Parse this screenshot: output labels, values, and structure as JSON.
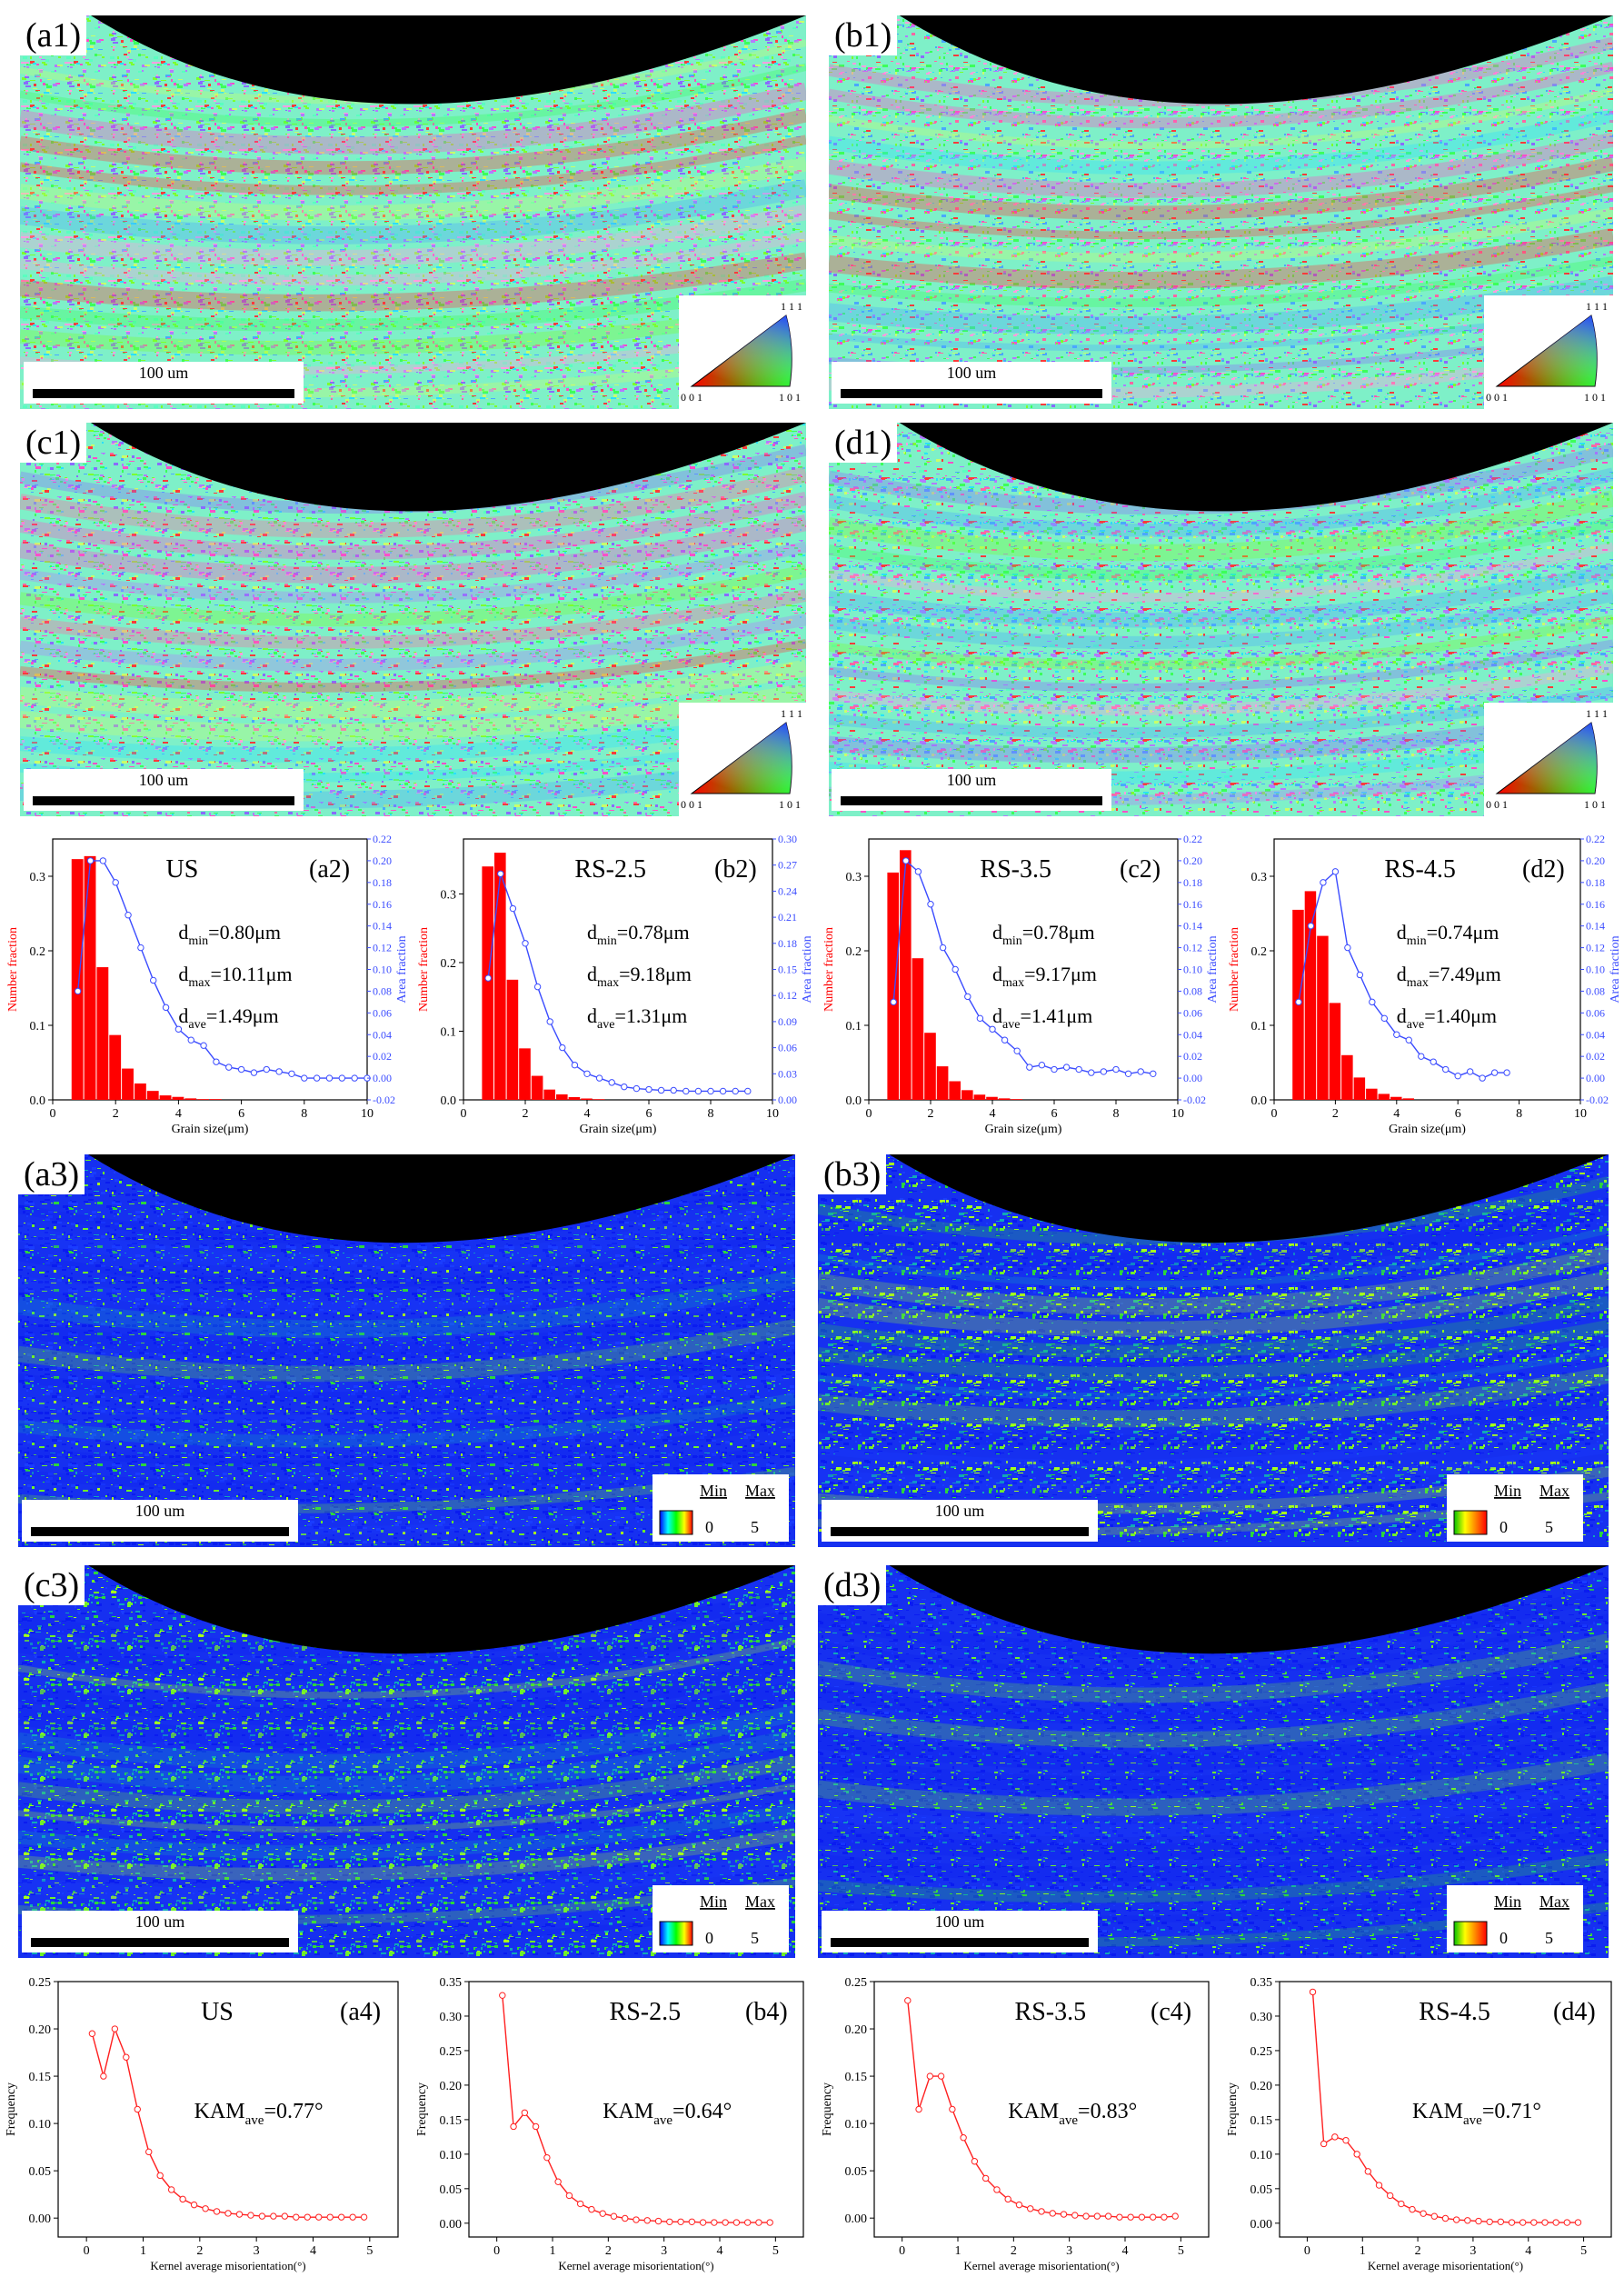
{
  "maps": {
    "ipf_panels": [
      {
        "label": "(a1)",
        "scale": "100 um"
      },
      {
        "label": "(b1)",
        "scale": "100 um"
      },
      {
        "label": "(c1)",
        "scale": "100 um"
      },
      {
        "label": "(d1)",
        "scale": "100 um"
      }
    ],
    "kam_panels": [
      {
        "label": "(a3)",
        "scale": "100 um"
      },
      {
        "label": "(b3)",
        "scale": "100 um"
      },
      {
        "label": "(c3)",
        "scale": "100 um"
      },
      {
        "label": "(d3)",
        "scale": "100 um"
      }
    ],
    "ipf_key": {
      "top": "1 1 1",
      "left": "0 0 1",
      "right": "1 0 1"
    },
    "kam_key": {
      "min_label": "Min",
      "max_label": "Max",
      "min_value": "0",
      "max_value": "5"
    }
  },
  "chart_data": [
    {
      "type": "bar",
      "panel": "(a2)",
      "group": "US",
      "xlabel": "Grain size(μm)",
      "ylabel": "Number fraction",
      "y2label": "Area fraction",
      "xlim": [
        0,
        10
      ],
      "ylim": [
        0,
        0.35
      ],
      "y2lim": [
        -0.02,
        0.22
      ],
      "xticks": [
        0,
        2,
        4,
        6,
        8,
        10
      ],
      "yticks": [
        0.0,
        0.1,
        0.2,
        0.3
      ],
      "y2ticks": [
        -0.02,
        0.0,
        0.02,
        0.04,
        0.06,
        0.08,
        0.1,
        0.12,
        0.14,
        0.16,
        0.18,
        0.2,
        0.22
      ],
      "bar_width": 0.4,
      "bars_x": [
        0.8,
        1.2,
        1.6,
        2.0,
        2.4,
        2.8,
        3.2,
        3.6,
        4.0,
        4.4,
        4.8,
        5.2
      ],
      "bars_y": [
        0.323,
        0.327,
        0.178,
        0.087,
        0.042,
        0.022,
        0.012,
        0.006,
        0.004,
        0.002,
        0.001,
        0.001
      ],
      "line_x": [
        0.8,
        1.2,
        1.6,
        2.0,
        2.4,
        2.8,
        3.2,
        3.6,
        4.0,
        4.4,
        4.8,
        5.2,
        5.6,
        6.0,
        6.4,
        6.8,
        7.2,
        7.6,
        8.0,
        8.4,
        8.8,
        9.2,
        9.6,
        10.0
      ],
      "line_y": [
        0.08,
        0.2,
        0.2,
        0.18,
        0.15,
        0.12,
        0.09,
        0.065,
        0.045,
        0.035,
        0.03,
        0.015,
        0.01,
        0.008,
        0.005,
        0.008,
        0.006,
        0.004,
        0.0,
        0.0,
        0.0,
        0.0,
        0.0,
        0.0
      ],
      "annotations": {
        "d_min": "0.80μm",
        "d_max": "10.11μm",
        "d_ave": "1.49μm"
      }
    },
    {
      "type": "bar",
      "panel": "(b2)",
      "group": "RS-2.5",
      "xlabel": "Grain size(μm)",
      "ylabel": "Number fraction",
      "y2label": "Area fraction",
      "xlim": [
        0,
        10
      ],
      "ylim": [
        0,
        0.38
      ],
      "y2lim": [
        0.0,
        0.3
      ],
      "xticks": [
        0,
        2,
        4,
        6,
        8,
        10
      ],
      "yticks": [
        0.0,
        0.1,
        0.2,
        0.3
      ],
      "y2ticks": [
        0.0,
        0.03,
        0.06,
        0.09,
        0.12,
        0.15,
        0.18,
        0.21,
        0.24,
        0.27,
        0.3
      ],
      "bar_width": 0.4,
      "bars_x": [
        0.8,
        1.2,
        1.6,
        2.0,
        2.4,
        2.8,
        3.2,
        3.6,
        4.0,
        4.4
      ],
      "bars_y": [
        0.34,
        0.36,
        0.175,
        0.075,
        0.035,
        0.015,
        0.008,
        0.004,
        0.002,
        0.001
      ],
      "line_x": [
        0.8,
        1.2,
        1.6,
        2.0,
        2.4,
        2.8,
        3.2,
        3.6,
        4.0,
        4.4,
        4.8,
        5.2,
        5.6,
        6.0,
        6.4,
        6.8,
        7.2,
        7.6,
        8.0,
        8.4,
        8.8,
        9.2
      ],
      "line_y": [
        0.14,
        0.26,
        0.22,
        0.18,
        0.13,
        0.09,
        0.06,
        0.04,
        0.03,
        0.025,
        0.02,
        0.015,
        0.013,
        0.012,
        0.011,
        0.011,
        0.01,
        0.01,
        0.01,
        0.01,
        0.01,
        0.01
      ],
      "annotations": {
        "d_min": "0.78μm",
        "d_max": "9.18μm",
        "d_ave": "1.31μm"
      }
    },
    {
      "type": "bar",
      "panel": "(c2)",
      "group": "RS-3.5",
      "xlabel": "Grain size(μm)",
      "ylabel": "Number fraction",
      "y2label": "Area fraction",
      "xlim": [
        0,
        10
      ],
      "ylim": [
        0,
        0.35
      ],
      "y2lim": [
        -0.02,
        0.22
      ],
      "xticks": [
        0,
        2,
        4,
        6,
        8,
        10
      ],
      "yticks": [
        0.0,
        0.1,
        0.2,
        0.3
      ],
      "y2ticks": [
        -0.02,
        0.0,
        0.02,
        0.04,
        0.06,
        0.08,
        0.1,
        0.12,
        0.14,
        0.16,
        0.18,
        0.2,
        0.22
      ],
      "bar_width": 0.4,
      "bars_x": [
        0.8,
        1.2,
        1.6,
        2.0,
        2.4,
        2.8,
        3.2,
        3.6,
        4.0,
        4.4,
        4.8
      ],
      "bars_y": [
        0.305,
        0.335,
        0.19,
        0.09,
        0.045,
        0.025,
        0.013,
        0.007,
        0.004,
        0.002,
        0.001
      ],
      "line_x": [
        0.8,
        1.2,
        1.6,
        2.0,
        2.4,
        2.8,
        3.2,
        3.6,
        4.0,
        4.4,
        4.8,
        5.2,
        5.6,
        6.0,
        6.4,
        6.8,
        7.2,
        7.6,
        8.0,
        8.4,
        8.8,
        9.2
      ],
      "line_y": [
        0.07,
        0.2,
        0.19,
        0.16,
        0.12,
        0.1,
        0.075,
        0.055,
        0.045,
        0.035,
        0.025,
        0.01,
        0.012,
        0.008,
        0.01,
        0.008,
        0.005,
        0.006,
        0.008,
        0.004,
        0.006,
        0.004
      ],
      "annotations": {
        "d_min": "0.78μm",
        "d_max": "9.17μm",
        "d_ave": "1.41μm"
      }
    },
    {
      "type": "bar",
      "panel": "(d2)",
      "group": "RS-4.5",
      "xlabel": "Grain size(μm)",
      "ylabel": "Number fraction",
      "y2label": "Area fraction",
      "xlim": [
        0,
        10
      ],
      "ylim": [
        0,
        0.35
      ],
      "y2lim": [
        -0.02,
        0.22
      ],
      "xticks": [
        0,
        2,
        4,
        6,
        8,
        10
      ],
      "yticks": [
        0.0,
        0.1,
        0.2,
        0.3
      ],
      "y2ticks": [
        -0.02,
        0.0,
        0.02,
        0.04,
        0.06,
        0.08,
        0.1,
        0.12,
        0.14,
        0.16,
        0.18,
        0.2,
        0.22
      ],
      "bar_width": 0.4,
      "bars_x": [
        0.8,
        1.2,
        1.6,
        2.0,
        2.4,
        2.8,
        3.2,
        3.6,
        4.0,
        4.4
      ],
      "bars_y": [
        0.255,
        0.28,
        0.22,
        0.13,
        0.06,
        0.03,
        0.015,
        0.008,
        0.004,
        0.002
      ],
      "line_x": [
        0.8,
        1.2,
        1.6,
        2.0,
        2.4,
        2.8,
        3.2,
        3.6,
        4.0,
        4.4,
        4.8,
        5.2,
        5.6,
        6.0,
        6.4,
        6.8,
        7.2,
        7.6
      ],
      "line_y": [
        0.07,
        0.14,
        0.18,
        0.19,
        0.12,
        0.095,
        0.07,
        0.055,
        0.04,
        0.035,
        0.02,
        0.015,
        0.008,
        0.002,
        0.006,
        0.0,
        0.005,
        0.005
      ],
      "annotations": {
        "d_min": "0.74μm",
        "d_max": "7.49μm",
        "d_ave": "1.40μm"
      }
    },
    {
      "type": "line",
      "panel": "(a4)",
      "group": "US",
      "xlabel": "Kernel average misorientation(°)",
      "ylabel": "Frequency",
      "xlim": [
        -0.5,
        5.5
      ],
      "ylim": [
        -0.02,
        0.25
      ],
      "xticks": [
        0,
        1,
        2,
        3,
        4,
        5
      ],
      "yticks": [
        0.0,
        0.05,
        0.1,
        0.15,
        0.2,
        0.25
      ],
      "x": [
        0.1,
        0.3,
        0.5,
        0.7,
        0.9,
        1.1,
        1.3,
        1.5,
        1.7,
        1.9,
        2.1,
        2.3,
        2.5,
        2.7,
        2.9,
        3.1,
        3.3,
        3.5,
        3.7,
        3.9,
        4.1,
        4.3,
        4.5,
        4.7,
        4.9
      ],
      "y": [
        0.195,
        0.15,
        0.2,
        0.17,
        0.115,
        0.07,
        0.045,
        0.03,
        0.02,
        0.014,
        0.01,
        0.007,
        0.005,
        0.004,
        0.003,
        0.002,
        0.002,
        0.002,
        0.001,
        0.001,
        0.001,
        0.001,
        0.001,
        0.001,
        0.001
      ],
      "annotations": {
        "kam_ave": "0.77°"
      }
    },
    {
      "type": "line",
      "panel": "(b4)",
      "group": "RS-2.5",
      "xlabel": "Kernel average misorientation(°)",
      "ylabel": "Frequency",
      "xlim": [
        -0.5,
        5.5
      ],
      "ylim": [
        -0.02,
        0.35
      ],
      "xticks": [
        0,
        1,
        2,
        3,
        4,
        5
      ],
      "yticks": [
        0.0,
        0.05,
        0.1,
        0.15,
        0.2,
        0.25,
        0.3,
        0.35
      ],
      "x": [
        0.1,
        0.3,
        0.5,
        0.7,
        0.9,
        1.1,
        1.3,
        1.5,
        1.7,
        1.9,
        2.1,
        2.3,
        2.5,
        2.7,
        2.9,
        3.1,
        3.3,
        3.5,
        3.7,
        3.9,
        4.1,
        4.3,
        4.5,
        4.7,
        4.9
      ],
      "y": [
        0.33,
        0.14,
        0.16,
        0.14,
        0.095,
        0.06,
        0.04,
        0.028,
        0.02,
        0.014,
        0.01,
        0.007,
        0.005,
        0.004,
        0.003,
        0.002,
        0.002,
        0.002,
        0.001,
        0.001,
        0.001,
        0.001,
        0.001,
        0.001,
        0.001
      ],
      "annotations": {
        "kam_ave": "0.64°"
      }
    },
    {
      "type": "line",
      "panel": "(c4)",
      "group": "RS-3.5",
      "xlabel": "Kernel average misorientation(°)",
      "ylabel": "Frequency",
      "xlim": [
        -0.5,
        5.5
      ],
      "ylim": [
        -0.02,
        0.25
      ],
      "xticks": [
        0,
        1,
        2,
        3,
        4,
        5
      ],
      "yticks": [
        0.0,
        0.05,
        0.1,
        0.15,
        0.2,
        0.25
      ],
      "x": [
        0.1,
        0.3,
        0.5,
        0.7,
        0.9,
        1.1,
        1.3,
        1.5,
        1.7,
        1.9,
        2.1,
        2.3,
        2.5,
        2.7,
        2.9,
        3.1,
        3.3,
        3.5,
        3.7,
        3.9,
        4.1,
        4.3,
        4.5,
        4.7,
        4.9
      ],
      "y": [
        0.23,
        0.115,
        0.15,
        0.15,
        0.115,
        0.085,
        0.06,
        0.042,
        0.03,
        0.02,
        0.014,
        0.01,
        0.007,
        0.005,
        0.004,
        0.003,
        0.002,
        0.002,
        0.002,
        0.001,
        0.001,
        0.001,
        0.001,
        0.001,
        0.002
      ],
      "annotations": {
        "kam_ave": "0.83°"
      }
    },
    {
      "type": "line",
      "panel": "(d4)",
      "group": "RS-4.5",
      "xlabel": "Kernel average misorientation(°)",
      "ylabel": "Frequency",
      "xlim": [
        -0.5,
        5.5
      ],
      "ylim": [
        -0.02,
        0.35
      ],
      "xticks": [
        0,
        1,
        2,
        3,
        4,
        5
      ],
      "yticks": [
        0.0,
        0.05,
        0.1,
        0.15,
        0.2,
        0.25,
        0.3,
        0.35
      ],
      "x": [
        0.1,
        0.3,
        0.5,
        0.7,
        0.9,
        1.1,
        1.3,
        1.5,
        1.7,
        1.9,
        2.1,
        2.3,
        2.5,
        2.7,
        2.9,
        3.1,
        3.3,
        3.5,
        3.7,
        3.9,
        4.1,
        4.3,
        4.5,
        4.7,
        4.9
      ],
      "y": [
        0.335,
        0.115,
        0.125,
        0.12,
        0.1,
        0.075,
        0.055,
        0.04,
        0.028,
        0.02,
        0.014,
        0.01,
        0.007,
        0.005,
        0.004,
        0.003,
        0.002,
        0.002,
        0.001,
        0.001,
        0.001,
        0.001,
        0.001,
        0.001,
        0.001
      ],
      "annotations": {
        "kam_ave": "0.71°"
      }
    }
  ]
}
